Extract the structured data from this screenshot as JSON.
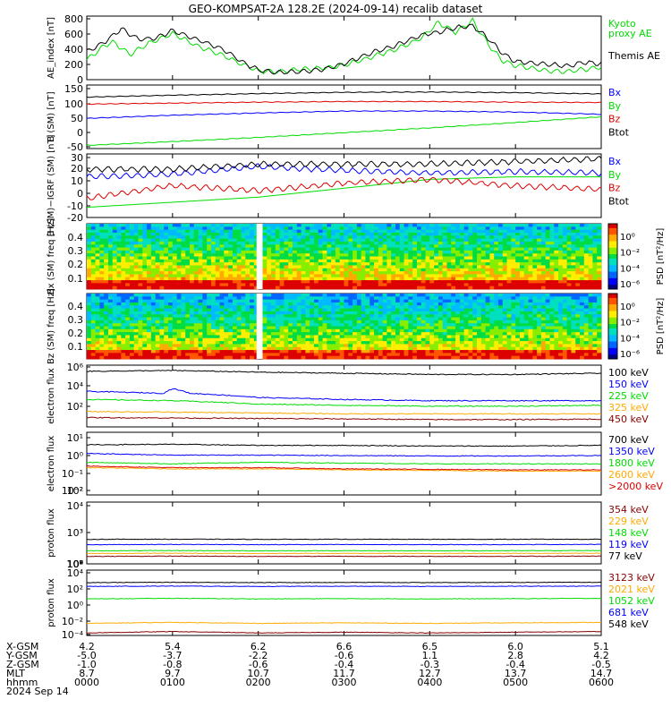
{
  "title": "GEO-KOMPSAT-2A 128.2E (2024-09-14) recalib dataset",
  "colors": {
    "black": "#000000",
    "blue": "#0000ff",
    "green": "#00dd00",
    "red": "#dd0000",
    "orange": "#ffaa00",
    "maroon": "#880000",
    "teal": "#00aacc"
  },
  "chart_data": [
    {
      "type": "line",
      "ylabel": "AE_index [nT]",
      "ylim": [
        0,
        800
      ],
      "yticks": [
        "0",
        "200",
        "400",
        "600",
        "800"
      ],
      "series": [
        {
          "name": "Kyoto proxy AE",
          "legend_lines": [
            "Kyoto",
            "proxy AE"
          ],
          "color": "#00dd00",
          "x": [
            0,
            0.2,
            0.3,
            0.5,
            0.75,
            1.0,
            1.3,
            1.6,
            1.8,
            2.0,
            2.2,
            2.5,
            2.8,
            3.0,
            3.3,
            3.6,
            3.9,
            4.1,
            4.3,
            4.5,
            4.7,
            4.85,
            5.0,
            5.3,
            5.6,
            5.8,
            6.0
          ],
          "y": [
            250,
            420,
            480,
            320,
            470,
            580,
            420,
            300,
            200,
            110,
            100,
            130,
            150,
            180,
            280,
            380,
            520,
            720,
            600,
            740,
            420,
            240,
            180,
            120,
            100,
            130,
            160
          ]
        },
        {
          "name": "Themis AE",
          "legend_lines": [
            "Themis AE"
          ],
          "color": "#000000",
          "x": [
            0,
            0.2,
            0.4,
            0.6,
            0.8,
            1.0,
            1.3,
            1.6,
            1.8,
            2.0,
            2.2,
            2.5,
            2.8,
            3.0,
            3.3,
            3.6,
            3.9,
            4.1,
            4.3,
            4.5,
            4.7,
            4.85,
            5.0,
            5.3,
            5.6,
            5.8,
            6.0
          ],
          "y": [
            350,
            470,
            640,
            510,
            520,
            620,
            500,
            380,
            230,
            120,
            90,
            100,
            140,
            200,
            330,
            430,
            560,
            600,
            650,
            680,
            500,
            330,
            230,
            200,
            170,
            220,
            200
          ]
        }
      ]
    },
    {
      "type": "line",
      "ylabel": "B (SM) [nT]",
      "ylim": [
        -50,
        150
      ],
      "yticks": [
        "-50",
        "0",
        "50",
        "100",
        "150"
      ],
      "series": [
        {
          "name": "Bx",
          "color": "#0000ff",
          "x": [
            0,
            1,
            2,
            3,
            4,
            5,
            6
          ],
          "y": [
            45,
            55,
            62,
            68,
            68,
            65,
            58
          ]
        },
        {
          "name": "By",
          "color": "#00dd00",
          "x": [
            0,
            1,
            2,
            3,
            4,
            5,
            6
          ],
          "y": [
            -40,
            -28,
            -15,
            0,
            15,
            32,
            50
          ]
        },
        {
          "name": "Bz",
          "color": "#dd0000",
          "x": [
            0,
            1,
            2,
            3,
            4,
            5,
            6
          ],
          "y": [
            90,
            93,
            96,
            98,
            98,
            96,
            95
          ]
        },
        {
          "name": "Btot",
          "color": "#000000",
          "x": [
            0,
            1,
            2,
            3,
            4,
            5,
            6
          ],
          "y": [
            112,
            118,
            123,
            127,
            128,
            126,
            122
          ]
        }
      ]
    },
    {
      "type": "line",
      "ylabel": "B (SM)−IGRF (SM) [nT]",
      "ylim": [
        -20,
        30
      ],
      "yticks": [
        "-20",
        "-10",
        "0",
        "10",
        "20",
        "30"
      ],
      "series": [
        {
          "name": "Bx",
          "color": "#0000ff",
          "x": [
            0,
            1,
            2,
            3,
            4,
            5,
            6
          ],
          "y": [
            12,
            14,
            20,
            17,
            15,
            16,
            15
          ]
        },
        {
          "name": "By",
          "color": "#00dd00",
          "x": [
            0,
            1,
            2,
            3,
            4,
            5,
            6
          ],
          "y": [
            -12,
            -8,
            -4,
            3,
            10,
            12,
            12
          ]
        },
        {
          "name": "Bz",
          "color": "#dd0000",
          "x": [
            0,
            1,
            2,
            3,
            4,
            5,
            6
          ],
          "y": [
            -5,
            5,
            1,
            7,
            10,
            5,
            2
          ]
        },
        {
          "name": "Btot",
          "color": "#000000",
          "x": [
            0,
            1,
            2,
            3,
            4,
            5,
            6
          ],
          "y": [
            18,
            18,
            22,
            22,
            22,
            24,
            26
          ]
        }
      ]
    },
    {
      "type": "heatmap",
      "ylabel": "Bx (SM) freq [Hz]",
      "yticks": [
        "0.1",
        "0.2",
        "0.3",
        "0.4"
      ],
      "ylim": [
        0.05,
        0.5
      ],
      "colorbar": {
        "label": "PSD [nT²/Hz]",
        "ticks": [
          "10⁰",
          "10⁻²",
          "10⁻⁴",
          "10⁻⁶"
        ]
      },
      "gap_hours": [
        1.98,
        2.05
      ]
    },
    {
      "type": "heatmap",
      "ylabel": "Bz (SM) freq [Hz]",
      "yticks": [
        "0.1",
        "0.2",
        "0.3",
        "0.4"
      ],
      "ylim": [
        0.05,
        0.5
      ],
      "colorbar": {
        "label": "PSD [nT²/Hz]",
        "ticks": [
          "10⁰",
          "10⁻²",
          "10⁻⁴",
          "10⁻⁶"
        ]
      },
      "gap_hours": [
        1.98,
        2.05
      ]
    },
    {
      "type": "line",
      "ylabel": "electron flux",
      "scale": "log",
      "ylim": [
        100,
        1000000
      ],
      "yticks": [
        "10²",
        "10⁴",
        "10⁶"
      ],
      "series": [
        {
          "name": "100 keV",
          "color": "#000000",
          "x": [
            0,
            1,
            2,
            3,
            4,
            5,
            6
          ],
          "y": [
            400000,
            450000,
            350000,
            300000,
            250000,
            250000,
            300000
          ]
        },
        {
          "name": "150 keV",
          "color": "#0000ff",
          "x": [
            0,
            0.9,
            1.0,
            1.2,
            2,
            3,
            4,
            5,
            6
          ],
          "y": [
            20000,
            15000,
            30000,
            15000,
            8000,
            6000,
            5000,
            5000,
            5000
          ]
        },
        {
          "name": "225 keV",
          "color": "#00dd00",
          "x": [
            0,
            1,
            2,
            3,
            4,
            5,
            6
          ],
          "y": [
            6000,
            5000,
            3000,
            2500,
            2200,
            2200,
            2500
          ]
        },
        {
          "name": "325 keV",
          "color": "#ffaa00",
          "x": [
            0,
            1,
            2,
            3,
            4,
            5,
            6
          ],
          "y": [
            1000,
            900,
            800,
            700,
            700,
            700,
            700
          ]
        },
        {
          "name": "450 keV",
          "color": "#880000",
          "x": [
            0,
            1,
            2,
            3,
            4,
            5,
            6
          ],
          "y": [
            400,
            380,
            350,
            330,
            300,
            300,
            320
          ]
        }
      ]
    },
    {
      "type": "line",
      "ylabel": "electron flux",
      "scale": "log",
      "ylim": [
        0.01,
        1000
      ],
      "yticks": [
        "10⁻²",
        "10⁻¹",
        "10⁰",
        "10¹",
        "10²"
      ],
      "series": [
        {
          "name": "700 keV",
          "color": "#000000",
          "x": [
            0,
            1,
            2,
            3,
            4,
            5,
            6
          ],
          "y": [
            100,
            110,
            90,
            90,
            80,
            80,
            90
          ]
        },
        {
          "name": "1350 keV",
          "color": "#0000ff",
          "x": [
            0,
            1,
            2,
            3,
            4,
            5,
            6
          ],
          "y": [
            20,
            15,
            15,
            14,
            13,
            13,
            14
          ]
        },
        {
          "name": "1800 keV",
          "color": "#00dd00",
          "x": [
            0,
            1,
            2,
            3,
            4,
            5,
            6
          ],
          "y": [
            4,
            3,
            4,
            3.5,
            3,
            3,
            3
          ]
        },
        {
          "name": "2600 keV",
          "color": "#ffaa00",
          "x": [
            0,
            1,
            2,
            3,
            4,
            5,
            6
          ],
          "y": [
            1.5,
            1.2,
            1.2,
            1.0,
            0.9,
            0.8,
            0.8
          ]
        },
        {
          "name": ">2000 keV",
          "color": "#dd0000",
          "x": [
            0,
            1,
            2,
            3,
            4,
            5,
            6
          ],
          "y": [
            2,
            1.5,
            1.5,
            1.2,
            1.1,
            1.0,
            1.0
          ]
        }
      ]
    },
    {
      "type": "line",
      "ylabel": "proton flux",
      "scale": "log",
      "ylim": [
        100,
        1000000000
      ],
      "yticks": [
        "10²",
        "10³",
        "10⁴",
        "10⁵",
        "10⁶",
        "10⁷",
        "10⁸",
        "10⁹"
      ],
      "series": [
        {
          "name": "354 keV",
          "color": "#880000",
          "x": [
            0,
            1,
            2,
            3,
            4,
            5,
            6
          ],
          "y": [
            700,
            750,
            700,
            720,
            700,
            720,
            750
          ]
        },
        {
          "name": "229 keV",
          "color": "#ffaa00",
          "x": [
            0,
            1,
            2,
            3,
            4,
            5,
            6
          ],
          "y": [
            1500,
            1600,
            1500,
            1550,
            1500,
            1550,
            1600
          ]
        },
        {
          "name": "148 keV",
          "color": "#00dd00",
          "x": [
            0,
            1,
            2,
            3,
            4,
            5,
            6
          ],
          "y": [
            3000,
            3200,
            3000,
            3100,
            3000,
            3100,
            3200
          ]
        },
        {
          "name": "119 keV",
          "color": "#0000ff",
          "x": [
            0,
            1,
            2,
            3,
            4,
            5,
            6
          ],
          "y": [
            15000,
            16000,
            15000,
            15500,
            15000,
            15500,
            16000
          ]
        },
        {
          "name": "77 keV",
          "color": "#000000",
          "x": [
            0,
            1,
            2,
            3,
            4,
            5,
            6
          ],
          "y": [
            60000,
            62000,
            60000,
            61000,
            60000,
            61000,
            62000
          ]
        }
      ]
    },
    {
      "type": "line",
      "ylabel": "proton flux",
      "scale": "log",
      "ylim": [
        0.0001,
        10000
      ],
      "yticks": [
        "10⁻⁴",
        "10⁻²",
        "10⁰",
        "10²",
        "10⁴"
      ],
      "series": [
        {
          "name": "3123 keV",
          "color": "#880000",
          "x": [
            0,
            1,
            2,
            3,
            4,
            5,
            6
          ],
          "y": [
            0.0002,
            0.0003,
            0.0002,
            0.00025,
            0.0002,
            0.00025,
            0.0003
          ]
        },
        {
          "name": "2021 keV",
          "color": "#ffaa00",
          "x": [
            0,
            1,
            2,
            3,
            4,
            5,
            6
          ],
          "y": [
            0.003,
            0.004,
            0.003,
            0.0035,
            0.003,
            0.0035,
            0.004
          ]
        },
        {
          "name": "1052 keV",
          "color": "#00dd00",
          "x": [
            0,
            1,
            2,
            3,
            4,
            5,
            6
          ],
          "y": [
            3,
            3.5,
            3,
            3.2,
            3,
            3.2,
            3.5
          ]
        },
        {
          "name": "681 keV",
          "color": "#0000ff",
          "x": [
            0,
            1,
            2,
            3,
            4,
            5,
            6
          ],
          "y": [
            100,
            110,
            100,
            105,
            100,
            105,
            110
          ]
        },
        {
          "name": "548 keV",
          "color": "#000000",
          "x": [
            0,
            1,
            2,
            3,
            4,
            5,
            6
          ],
          "y": [
            300,
            320,
            300,
            310,
            300,
            310,
            320
          ]
        }
      ]
    }
  ],
  "ephemeris": {
    "row_labels": [
      "X-GSM",
      "Y-GSM",
      "Z-GSM",
      "MLT",
      "hhmm"
    ],
    "columns": [
      {
        "x_hours": 0,
        "values": [
          "4.2",
          "-5.0",
          "-1.0",
          "8.7",
          "0000"
        ]
      },
      {
        "x_hours": 1,
        "values": [
          "5.4",
          "-3.7",
          "-0.8",
          "9.7",
          "0100"
        ]
      },
      {
        "x_hours": 2,
        "values": [
          "6.2",
          "-2.2",
          "-0.6",
          "10.7",
          "0200"
        ]
      },
      {
        "x_hours": 3,
        "values": [
          "6.6",
          "-0.6",
          "-0.4",
          "11.7",
          "0300"
        ]
      },
      {
        "x_hours": 4,
        "values": [
          "6.5",
          "1.1",
          "-0.3",
          "12.7",
          "0400"
        ]
      },
      {
        "x_hours": 5,
        "values": [
          "6.0",
          "2.8",
          "-0.4",
          "13.7",
          "0500"
        ]
      },
      {
        "x_hours": 6,
        "values": [
          "5.1",
          "4.2",
          "-0.5",
          "14.7",
          "0600"
        ]
      }
    ],
    "date_label": "2024 Sep 14"
  }
}
